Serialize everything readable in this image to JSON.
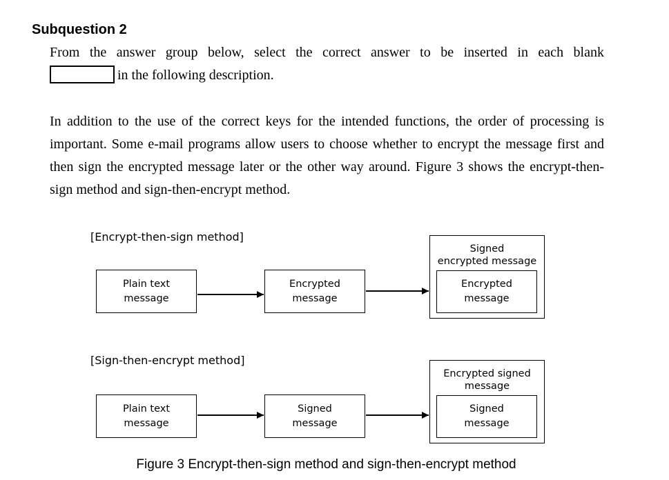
{
  "heading": "Subquestion 2",
  "intro": {
    "line1": "From the answer group below, select the correct answer to be inserted in each blank",
    "line2": "in the following description."
  },
  "body_paragraph": "In addition to the use of the correct keys for the intended functions, the order of processing is important.  Some e-mail programs allow users to choose whether to encrypt the message first and then sign the encrypted message later or the other way around.  Figure 3 shows the encrypt-then-sign method and sign-then-encrypt method.",
  "diagram": {
    "top": {
      "label": "[Encrypt-then-sign method]",
      "step1_l1": "Plain text",
      "step1_l2": "message",
      "step2_l1": "Encrypted",
      "step2_l2": "message",
      "outer_l1": "Signed",
      "outer_l2": "encrypted message",
      "inner_l1": "Encrypted",
      "inner_l2": "message"
    },
    "bottom": {
      "label": "[Sign-then-encrypt method]",
      "step1_l1": "Plain text",
      "step1_l2": "message",
      "step2_l1": "Signed",
      "step2_l2": "message",
      "outer_l1": "Encrypted signed",
      "outer_l2": "message",
      "inner_l1": "Signed",
      "inner_l2": "message"
    }
  },
  "caption": "Figure 3  Encrypt-then-sign method and sign-then-encrypt method"
}
